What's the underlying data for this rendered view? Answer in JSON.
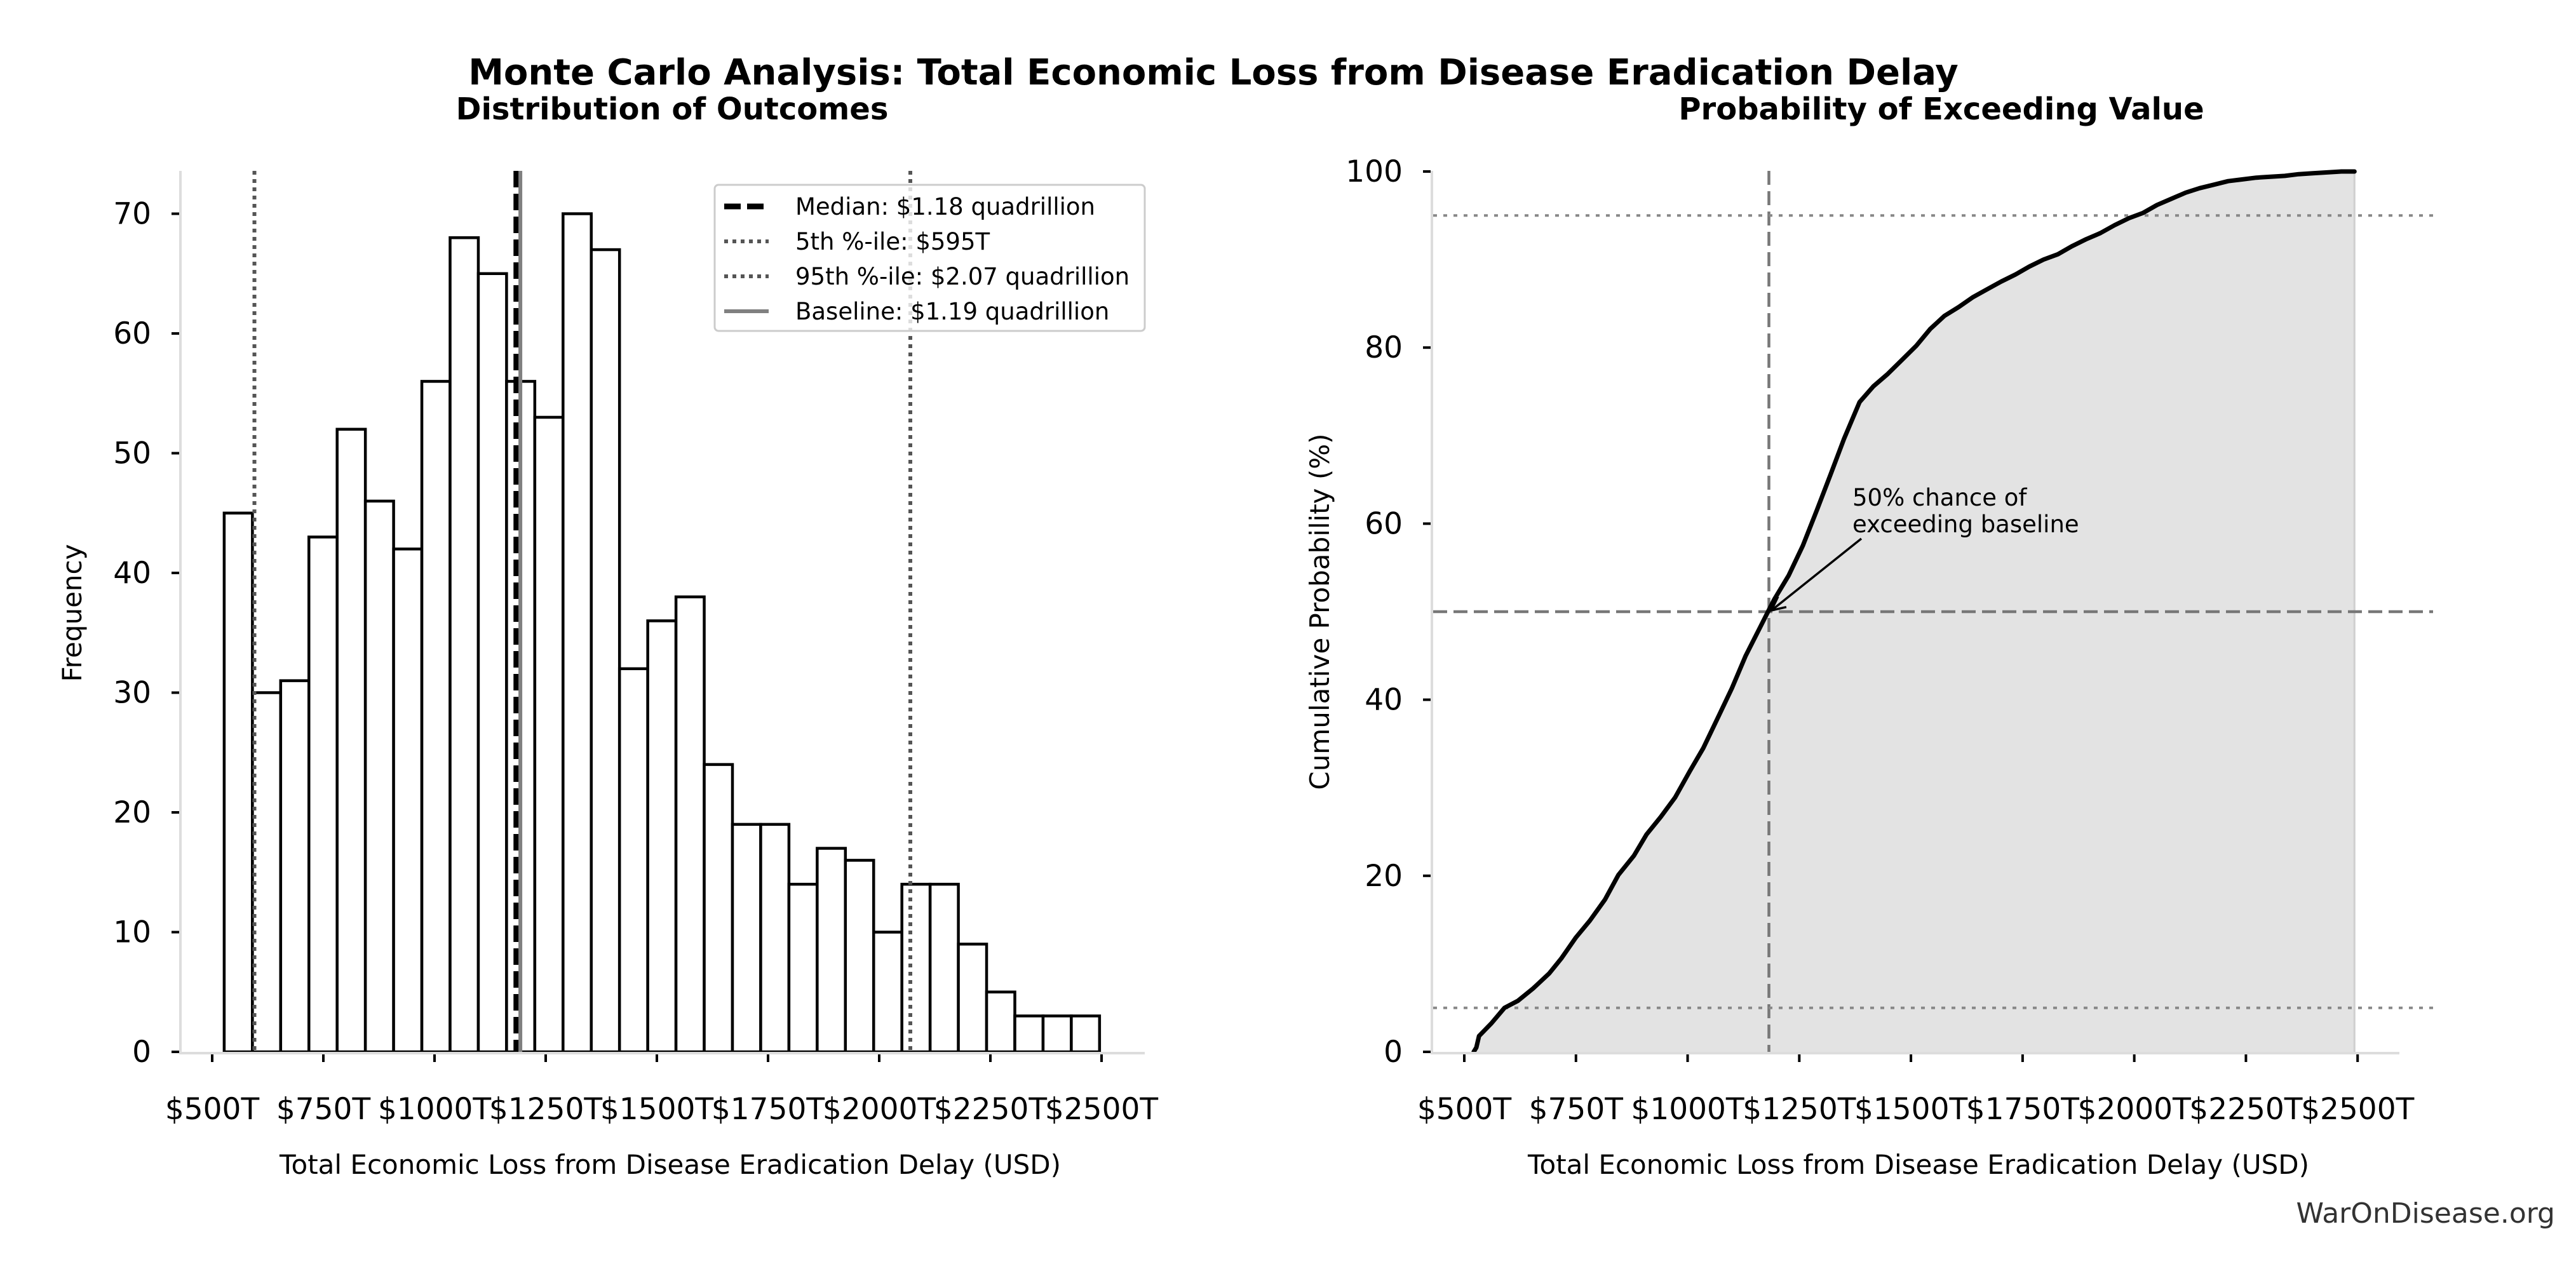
{
  "figure": {
    "suptitle": "Monte Carlo Analysis: Total Economic Loss from Disease Eradication Delay",
    "watermark": "WarOnDisease.org"
  },
  "chart_data": [
    {
      "type": "bar",
      "subtype": "histogram",
      "title": "Distribution of Outcomes",
      "xlabel": "Total Economic Loss from Disease Eradication Delay (USD)",
      "ylabel": "Frequency",
      "x_unit": "trillion USD",
      "xlim": [
        420,
        2590
      ],
      "ylim": [
        0,
        73.5
      ],
      "xticks": [
        500,
        750,
        1000,
        1250,
        1500,
        1750,
        2000,
        2250,
        2500
      ],
      "xtick_labels": [
        "$500T",
        "$750T",
        "$1000T",
        "$1250T",
        "$1500T",
        "$1750T",
        "$2000T",
        "$2250T",
        "$2500T"
      ],
      "yticks": [
        0,
        10,
        20,
        30,
        40,
        50,
        60,
        70
      ],
      "ytick_labels": [
        "0",
        "10",
        "20",
        "30",
        "40",
        "50",
        "60",
        "70"
      ],
      "bin_start": 527,
      "bin_width": 63.5,
      "values": [
        45,
        30,
        31,
        43,
        52,
        46,
        42,
        56,
        68,
        65,
        56,
        53,
        70,
        67,
        32,
        36,
        38,
        24,
        19,
        19,
        14,
        17,
        16,
        10,
        14,
        14,
        9,
        5,
        3,
        3,
        3
      ],
      "bar_fill": "#ffffff",
      "bar_edge": "#000000",
      "reference_lines": [
        {
          "name": "median",
          "value": 1184,
          "style": "dashed",
          "color": "#000000",
          "legend": "Median: $1.18 quadrillion"
        },
        {
          "name": "p5",
          "value": 595,
          "style": "dotted",
          "color": "#555555",
          "legend": "5th %-ile: $595T"
        },
        {
          "name": "p95",
          "value": 2070,
          "style": "dotted",
          "color": "#555555",
          "legend": "95th %-ile: $2.07 quadrillion"
        },
        {
          "name": "baseline",
          "value": 1193,
          "style": "solid",
          "color": "#808080",
          "legend": "Baseline: $1.19 quadrillion"
        }
      ],
      "legend_position": "top-right",
      "grid": false
    },
    {
      "type": "area",
      "title": "Probability of Exceeding Value",
      "xlabel": "Total Economic Loss from Disease Eradication Delay (USD)",
      "ylabel": "Cumulative Probability (%)",
      "x_unit": "trillion USD",
      "xlim": [
        430,
        2600
      ],
      "ylim": [
        0,
        100
      ],
      "xticks": [
        500,
        750,
        1000,
        1250,
        1500,
        1750,
        2000,
        2250,
        2500
      ],
      "xtick_labels": [
        "$500T",
        "$750T",
        "$1000T",
        "$1250T",
        "$1500T",
        "$1750T",
        "$2000T",
        "$2250T",
        "$2500T"
      ],
      "yticks": [
        0,
        20,
        40,
        60,
        80,
        100
      ],
      "ytick_labels": [
        "0",
        "20",
        "40",
        "60",
        "80",
        "100"
      ],
      "series": [
        {
          "name": "Cumulative probability",
          "x": [
            521,
            527,
            533,
            560,
            590,
            620,
            654,
            690,
            717,
            750,
            781,
            815,
            845,
            880,
            908,
            940,
            972,
            1005,
            1035,
            1070,
            1099,
            1130,
            1162,
            1180,
            1194,
            1226,
            1258,
            1290,
            1321,
            1350,
            1385,
            1416,
            1448,
            1480,
            1512,
            1543,
            1575,
            1607,
            1638,
            1670,
            1702,
            1734,
            1765,
            1797,
            1829,
            1860,
            1892,
            1924,
            1956,
            1988,
            2020,
            2051,
            2083,
            2115,
            2146,
            2178,
            2210,
            2241,
            2273,
            2305,
            2337,
            2368,
            2400,
            2432,
            2464,
            2493
          ],
          "y": [
            0,
            0.5,
            1.8,
            3.2,
            5.0,
            5.8,
            7.2,
            8.9,
            10.6,
            13.0,
            14.9,
            17.3,
            20.1,
            22.3,
            24.7,
            26.7,
            28.9,
            31.9,
            34.5,
            38.2,
            41.3,
            45.0,
            48.2,
            50.0,
            51.4,
            54.1,
            57.5,
            61.6,
            65.7,
            69.6,
            73.8,
            75.6,
            77.0,
            78.6,
            80.2,
            82.1,
            83.6,
            84.6,
            85.7,
            86.6,
            87.5,
            88.3,
            89.2,
            90.0,
            90.6,
            91.5,
            92.3,
            93.0,
            93.9,
            94.7,
            95.3,
            96.2,
            96.9,
            97.6,
            98.1,
            98.5,
            98.9,
            99.1,
            99.3,
            99.4,
            99.5,
            99.7,
            99.8,
            99.9,
            100.0,
            100.0
          ]
        }
      ],
      "fill_color": "#e3e3e3",
      "line_color": "#000000",
      "reference_lines": [
        {
          "name": "baseline-vertical",
          "axis": "x",
          "value": 1182,
          "style": "dashed",
          "color": "#777777"
        },
        {
          "name": "fifty-percent",
          "axis": "y",
          "value": 50,
          "style": "dashed",
          "color": "#777777"
        },
        {
          "name": "five-percent",
          "axis": "y",
          "value": 5,
          "style": "dotted",
          "color": "#888888"
        },
        {
          "name": "ninety-five-percent",
          "axis": "y",
          "value": 95,
          "style": "dotted",
          "color": "#888888"
        }
      ],
      "annotation": {
        "lines": [
          "50% chance of",
          "exceeding baseline"
        ],
        "point": [
          1182,
          50
        ],
        "text_anchor_data": [
          1300,
          59
        ]
      },
      "grid": false
    }
  ]
}
